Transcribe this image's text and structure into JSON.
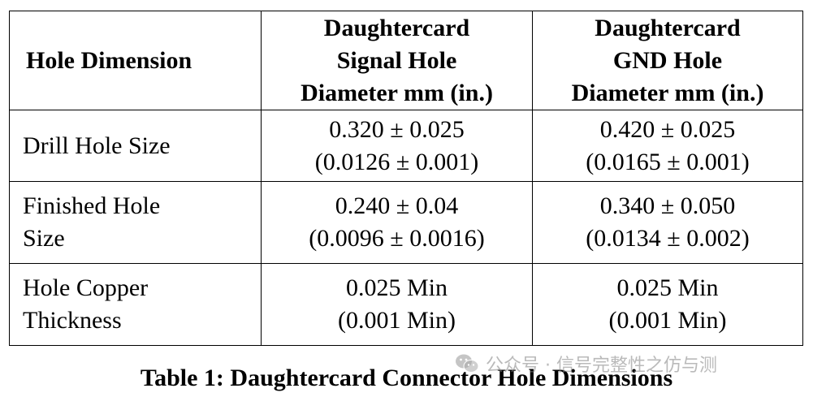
{
  "table": {
    "headers": [
      [
        "Hole Dimension"
      ],
      [
        "Daughtercard",
        "Signal Hole",
        "Diameter mm (in.)"
      ],
      [
        "Daughtercard",
        "GND Hole",
        "Diameter mm (in.)"
      ]
    ],
    "rows": [
      {
        "label": [
          "Drill Hole Size"
        ],
        "signal": [
          "0.320 ± 0.025",
          "(0.0126 ± 0.001)"
        ],
        "gnd": [
          "0.420 ± 0.025",
          "(0.0165 ± 0.001)"
        ]
      },
      {
        "label": [
          "Finished Hole",
          "Size"
        ],
        "signal": [
          "0.240 ± 0.04",
          "(0.0096 ± 0.0016)"
        ],
        "gnd": [
          "0.340 ± 0.050",
          "(0.0134 ± 0.002)"
        ]
      },
      {
        "label": [
          "Hole Copper",
          "Thickness"
        ],
        "signal": [
          "0.025 Min",
          "(0.001 Min)"
        ],
        "gnd": [
          "0.025 Min",
          "(0.001 Min)"
        ]
      }
    ]
  },
  "caption": "Table 1: Daughtercard Connector Hole Dimensions",
  "watermark": {
    "icon": "wechat-icon",
    "text": "公众号 · 信号完整性之仿与测"
  }
}
